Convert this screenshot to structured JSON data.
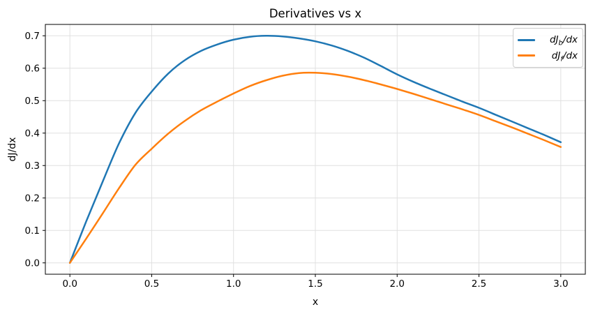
{
  "figure": {
    "title": "Derivatives vs x",
    "xlabel": "x",
    "ylabel": "dJ/dx",
    "x_tick_labels": [
      "0.0",
      "0.5",
      "1.0",
      "1.5",
      "2.0",
      "2.5",
      "3.0"
    ],
    "y_tick_labels": [
      "0.0",
      "0.1",
      "0.2",
      "0.3",
      "0.4",
      "0.5",
      "0.6",
      "0.7"
    ],
    "legend": {
      "entries": [
        {
          "prefix": "dJ",
          "sub": "b",
          "suffix": "/dx",
          "color": "#1f77b4"
        },
        {
          "prefix": "dJ",
          "sub": "f",
          "suffix": "/dx",
          "color": "#ff7f0e"
        }
      ]
    },
    "colors": {
      "accent_blue": "#1f77b4",
      "accent_orange": "#ff7f0e",
      "grid": "#e0e0e0",
      "spine": "#000000",
      "background": "#ffffff"
    }
  },
  "chart_data": {
    "type": "line",
    "title": "Derivatives vs x",
    "xlabel": "x",
    "ylabel": "dJ/dx",
    "xlim": [
      -0.15,
      3.15
    ],
    "ylim": [
      -0.035,
      0.735
    ],
    "x_ticks": [
      0.0,
      0.5,
      1.0,
      1.5,
      2.0,
      2.5,
      3.0
    ],
    "y_ticks": [
      0.0,
      0.1,
      0.2,
      0.3,
      0.4,
      0.5,
      0.6,
      0.7
    ],
    "grid": true,
    "legend_position": "upper right",
    "x": [
      0.0,
      0.1,
      0.2,
      0.3,
      0.4,
      0.5,
      0.6,
      0.7,
      0.8,
      0.9,
      1.0,
      1.1,
      1.2,
      1.3,
      1.4,
      1.5,
      1.6,
      1.7,
      1.8,
      1.9,
      2.0,
      2.1,
      2.2,
      2.3,
      2.4,
      2.5,
      2.6,
      2.7,
      2.8,
      2.9,
      3.0
    ],
    "series": [
      {
        "name": "dJ_b/dx",
        "color": "#1f77b4",
        "peak": {
          "x": 1.2,
          "y": 0.7
        },
        "values": [
          0.0,
          0.128,
          0.25,
          0.368,
          0.462,
          0.528,
          0.583,
          0.624,
          0.653,
          0.673,
          0.688,
          0.697,
          0.7,
          0.698,
          0.692,
          0.683,
          0.67,
          0.653,
          0.632,
          0.607,
          0.581,
          0.558,
          0.537,
          0.517,
          0.497,
          0.478,
          0.457,
          0.436,
          0.415,
          0.394,
          0.372
        ]
      },
      {
        "name": "dJ_f/dx",
        "color": "#ff7f0e",
        "peak": {
          "x": 1.45,
          "y": 0.586
        },
        "values": [
          0.0,
          0.075,
          0.152,
          0.23,
          0.302,
          0.352,
          0.398,
          0.437,
          0.47,
          0.497,
          0.522,
          0.545,
          0.563,
          0.577,
          0.585,
          0.586,
          0.582,
          0.574,
          0.563,
          0.55,
          0.536,
          0.521,
          0.505,
          0.489,
          0.473,
          0.456,
          0.437,
          0.418,
          0.398,
          0.378,
          0.357
        ]
      }
    ]
  }
}
